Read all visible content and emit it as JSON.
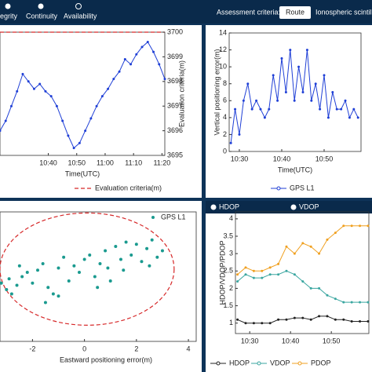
{
  "toolbar": {
    "tabs": [
      "egrity",
      "Continuity",
      "Availability"
    ],
    "criteria_label": "Assessment criteria:",
    "button": "Route",
    "cropped_text": "Ionospheric scintill"
  },
  "chart_data": [
    {
      "type": "line",
      "y_axis_side": "right",
      "xlabel": "Time(UTC)",
      "ylabel": "Evaluation criteria(m)",
      "xlim": [
        23,
        81
      ],
      "xticks": [
        {
          "value": 40,
          "label": "10:40"
        },
        {
          "value": 50,
          "label": "10:50"
        },
        {
          "value": 60,
          "label": "11:00"
        },
        {
          "value": 70,
          "label": "11:10"
        },
        {
          "value": 80,
          "label": "11:20"
        }
      ],
      "ylim": [
        3695,
        3700
      ],
      "yticks": [
        3695,
        3696,
        3697,
        3698,
        3699,
        3700
      ],
      "x": [
        23,
        25,
        27,
        29,
        31,
        33,
        35,
        37,
        39,
        41,
        43,
        45,
        47,
        49,
        51,
        53,
        55,
        57,
        59,
        61,
        63,
        65,
        67,
        69,
        71,
        73,
        75,
        77,
        79,
        81
      ],
      "series": [
        {
          "name": null,
          "color": "#1f3fd6",
          "marker": true,
          "values": [
            3696.0,
            3696.4,
            3697.0,
            3697.6,
            3698.3,
            3698.0,
            3697.7,
            3697.9,
            3697.6,
            3697.4,
            3697.0,
            3696.4,
            3695.8,
            3695.3,
            3695.5,
            3696.0,
            3696.5,
            3697.0,
            3697.4,
            3697.7,
            3698.1,
            3698.4,
            3698.9,
            3698.7,
            3699.1,
            3699.4,
            3699.6,
            3699.2,
            3698.7,
            3698.1
          ]
        }
      ],
      "criteria": {
        "name": "Evaluation criteria(m)",
        "value": 3700,
        "color": "#d62728"
      }
    },
    {
      "type": "line",
      "y_axis_side": "left",
      "xlabel": "Time(UTC)",
      "ylabel": "Vertical positioning error(m)",
      "xlim": [
        27.6,
        58.7
      ],
      "xticks": [
        {
          "value": 30,
          "label": "10:30"
        },
        {
          "value": 40,
          "label": "10:40"
        },
        {
          "value": 50,
          "label": "10:50"
        }
      ],
      "ylim": [
        0,
        14
      ],
      "yticks": [
        0,
        2,
        4,
        6,
        8,
        10,
        12,
        14
      ],
      "x": [
        28,
        29,
        30,
        31,
        32,
        33,
        34,
        35,
        36,
        37,
        38,
        39,
        40,
        41,
        42,
        43,
        44,
        45,
        46,
        47,
        48,
        49,
        50,
        51,
        52,
        53,
        54,
        55,
        56,
        57,
        58
      ],
      "series": [
        {
          "name": "GPS L1",
          "color": "#1f3fd6",
          "marker": true,
          "values": [
            1,
            5,
            2,
            6,
            8,
            5,
            6,
            5,
            4,
            5,
            9,
            6,
            11,
            7,
            12,
            6,
            10,
            7,
            12,
            6,
            8,
            5,
            9,
            4,
            7,
            5,
            5,
            6,
            4,
            5,
            4
          ]
        }
      ]
    },
    {
      "type": "scatter",
      "xlabel": "Eastward positioning error(m)",
      "xlim": [
        -3.25,
        4.3
      ],
      "xticks": [
        -2,
        0,
        2,
        4
      ],
      "ylim": [
        -3,
        3
      ],
      "ellipse": {
        "cx": 0.1,
        "cy": 0.35,
        "rx": 3.35,
        "ry": 2.6,
        "color": "#d62728"
      },
      "series": [
        {
          "name": "GPS L1",
          "color": "#1a9a8f",
          "x": [
            -3.2,
            -3.0,
            -2.9,
            -2.8,
            -2.6,
            -2.4,
            -2.2,
            -2.0,
            -1.8,
            -1.6,
            -1.4,
            -1.2,
            -1.0,
            -0.8,
            -0.6,
            -0.4,
            -0.2,
            0.0,
            0.2,
            0.4,
            0.6,
            0.8,
            1.0,
            1.2,
            1.4,
            1.6,
            1.8,
            2.0,
            2.2,
            2.4,
            2.6,
            2.8,
            3.0,
            -1.5,
            -1.0,
            0.5,
            1.5,
            2.5,
            -2.5,
            0.9
          ],
          "values": [
            -0.3,
            -0.6,
            -0.1,
            -0.8,
            -0.4,
            0.0,
            0.2,
            -0.3,
            0.3,
            0.6,
            -0.5,
            -0.8,
            0.4,
            0.9,
            -0.2,
            0.5,
            0.2,
            0.8,
            1.0,
            0.0,
            0.6,
            1.2,
            -0.2,
            1.4,
            0.8,
            1.6,
            1.0,
            1.5,
            0.7,
            1.3,
            1.7,
            0.9,
            1.2,
            -1.2,
            -0.9,
            -0.5,
            0.3,
            0.5,
            0.5,
            0.4
          ]
        }
      ]
    },
    {
      "type": "line",
      "y_axis_side": "left",
      "toggles": [
        "HDOP",
        "VDOP"
      ],
      "xlabel": null,
      "ylabel": "HDOP/VDOP/PDOP",
      "xlim": [
        26.5,
        59.2
      ],
      "xticks": [
        {
          "value": 30,
          "label": "10:30"
        },
        {
          "value": 40,
          "label": "10:40"
        },
        {
          "value": 50,
          "label": "10:50"
        }
      ],
      "ylim": [
        0.7,
        4.2
      ],
      "yticks": [
        1,
        1.5,
        2,
        2.5,
        3,
        3.5,
        4
      ],
      "x": [
        27,
        29,
        31,
        33,
        35,
        37,
        39,
        41,
        43,
        45,
        47,
        49,
        51,
        53,
        55,
        57,
        59
      ],
      "series": [
        {
          "name": "HDOP",
          "color": "#222222",
          "marker": true,
          "values": [
            1.1,
            1.0,
            1.0,
            1.0,
            1.0,
            1.1,
            1.1,
            1.15,
            1.15,
            1.1,
            1.2,
            1.2,
            1.1,
            1.1,
            1.05,
            1.05,
            1.05
          ]
        },
        {
          "name": "VDOP",
          "color": "#3aa6a0",
          "marker": true,
          "values": [
            2.2,
            2.4,
            2.3,
            2.3,
            2.4,
            2.4,
            2.5,
            2.4,
            2.2,
            2.0,
            2.0,
            1.8,
            1.7,
            1.6,
            1.6,
            1.6,
            1.6
          ]
        },
        {
          "name": "PDOP",
          "color": "#f0a020",
          "marker": true,
          "values": [
            2.4,
            2.6,
            2.5,
            2.5,
            2.6,
            2.7,
            3.2,
            3.0,
            3.3,
            3.2,
            3.0,
            3.4,
            3.6,
            3.8,
            3.8,
            3.8,
            3.8
          ]
        }
      ]
    }
  ]
}
